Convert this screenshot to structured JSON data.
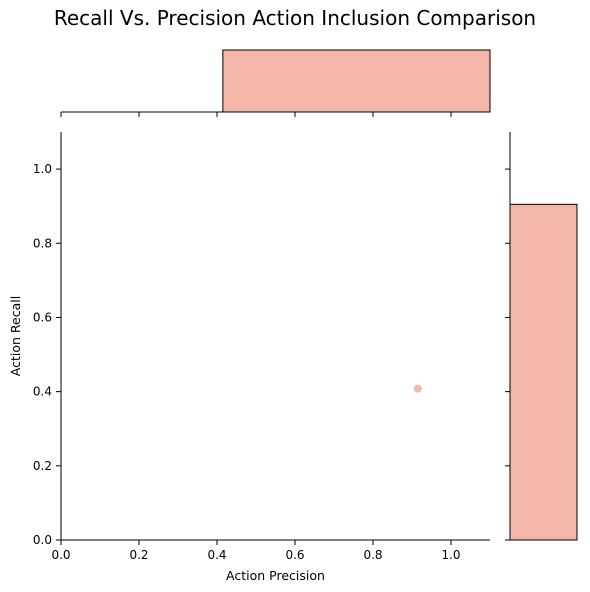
{
  "chart_data": {
    "type": "scatter",
    "title": "Recall Vs. Precision Action Inclusion Comparison",
    "xlabel": "Action Precision",
    "ylabel": "Action Recall",
    "xlim": [
      0,
      1.1
    ],
    "ylim": [
      0,
      1.1
    ],
    "x_ticks": [
      "0.0",
      "0.2",
      "0.4",
      "0.6",
      "0.8",
      "1.0"
    ],
    "y_ticks": [
      "0.0",
      "0.2",
      "0.4",
      "0.6",
      "0.8",
      "1.0"
    ],
    "points": [
      {
        "x": 0.915,
        "y": 0.408
      }
    ],
    "marginal_x_histogram": {
      "bins": [
        {
          "start": 0.415,
          "end": 1.1,
          "count": 1
        }
      ]
    },
    "marginal_y_histogram": {
      "bins": [
        {
          "start": 0.0,
          "end": 0.905,
          "count": 1
        }
      ]
    },
    "grid": false,
    "legend": "none",
    "colors": {
      "marker": "#f4b6a9",
      "bar_fill": "#f4b6a9",
      "bar_edge": "#000000",
      "axis": "#000000"
    }
  }
}
